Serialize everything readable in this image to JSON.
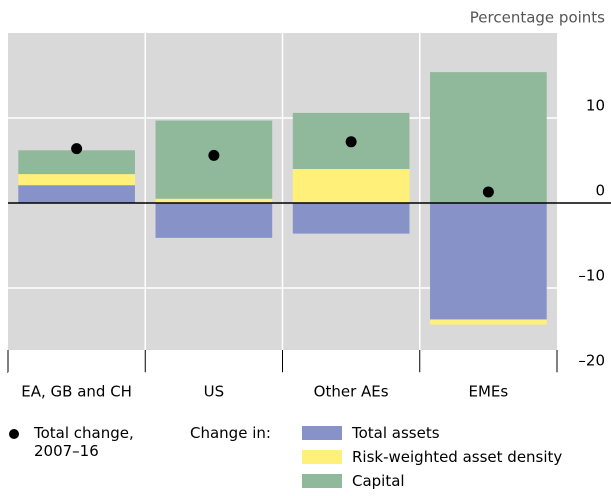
{
  "chart_data": {
    "type": "bar",
    "stacked": true,
    "unit_label": "Percentage points",
    "categories": [
      "EA, GB and CH",
      "US",
      "Other AEs",
      "EMEs"
    ],
    "series": [
      {
        "name": "Total assets",
        "color": "#8792c9",
        "values": [
          2.1,
          -4.1,
          -3.6,
          -13.7
        ]
      },
      {
        "name": "Risk-weighted asset density",
        "color": "#fff07a",
        "values": [
          1.3,
          0.5,
          4.0,
          -0.6
        ]
      },
      {
        "name": "Capital",
        "color": "#90b99c",
        "values": [
          2.8,
          9.2,
          6.6,
          15.4
        ]
      }
    ],
    "dots": {
      "name": "Total change, 2007–16",
      "color": "#000000",
      "values": [
        6.4,
        5.6,
        7.2,
        1.3
      ]
    },
    "legend_prefix": "Change in:",
    "ylim": [
      -20,
      20
    ],
    "yticks": [
      {
        "value": -20,
        "label": "–20"
      },
      {
        "value": -10,
        "label": "–10"
      },
      0,
      10
    ],
    "grid": true
  }
}
